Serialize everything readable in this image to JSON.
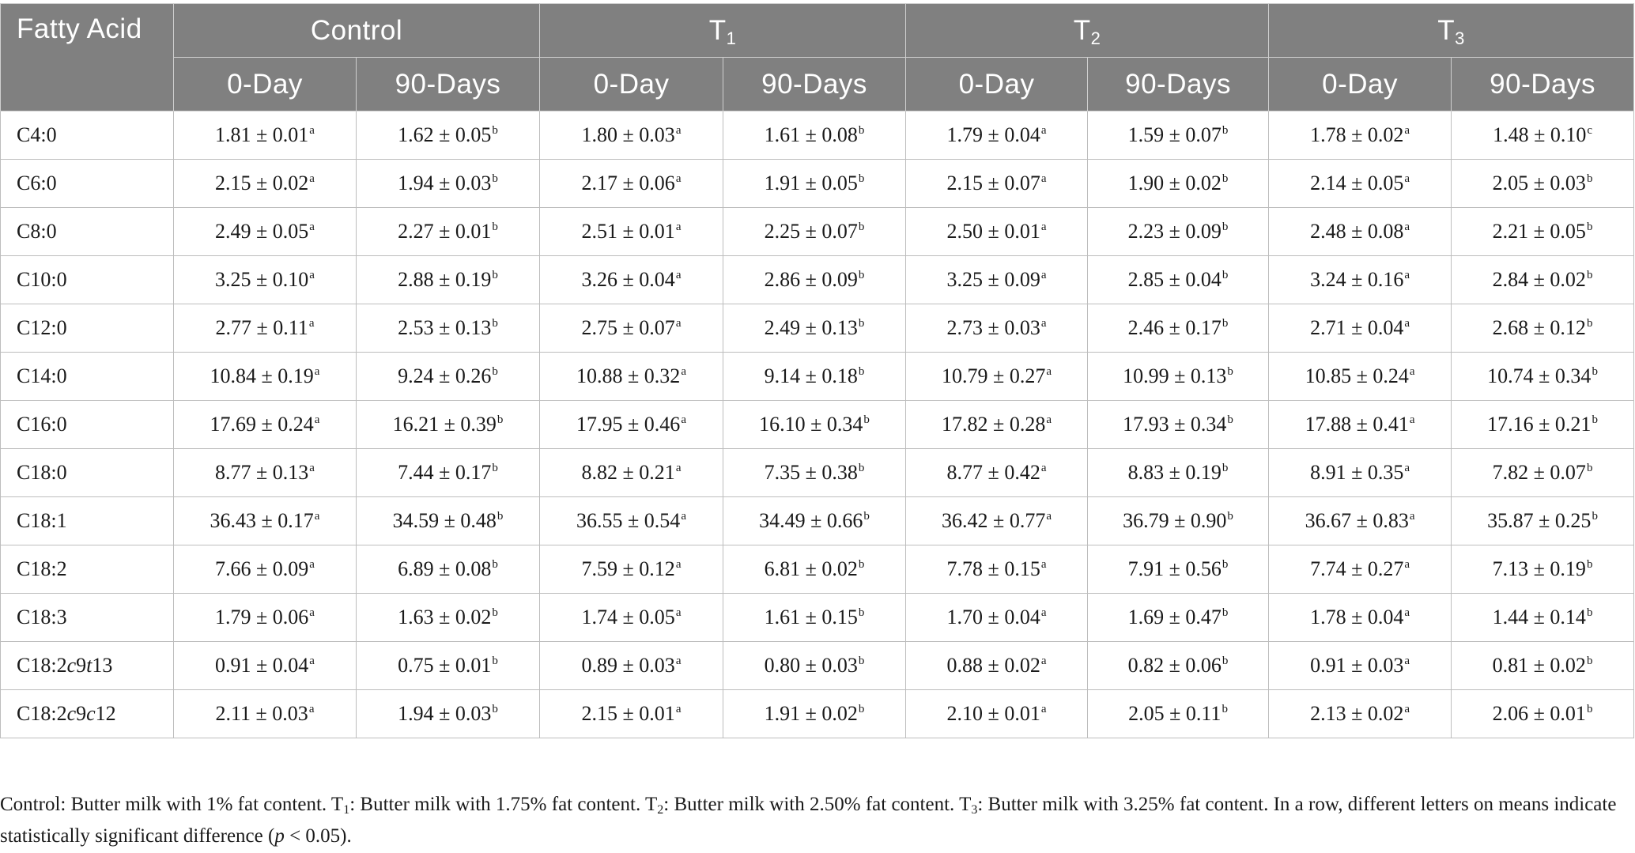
{
  "table": {
    "first_col_header": "Fatty Acid",
    "groups": [
      {
        "label": "Control",
        "sub": ""
      },
      {
        "label": "T",
        "sub": "1"
      },
      {
        "label": "T",
        "sub": "2"
      },
      {
        "label": "T",
        "sub": "3"
      }
    ],
    "subheaders": [
      "0-Day",
      "90-Days"
    ],
    "rows": [
      {
        "name": "C4:0",
        "cells": [
          [
            "1.81 ± 0.01",
            "a"
          ],
          [
            "1.62 ± 0.05",
            "b"
          ],
          [
            "1.80 ± 0.03",
            "a"
          ],
          [
            "1.61 ± 0.08",
            "b"
          ],
          [
            "1.79 ± 0.04",
            "a"
          ],
          [
            "1.59 ± 0.07",
            "b"
          ],
          [
            "1.78 ± 0.02",
            "a"
          ],
          [
            "1.48 ± 0.10",
            "c"
          ]
        ]
      },
      {
        "name": "C6:0",
        "cells": [
          [
            "2.15 ± 0.02",
            "a"
          ],
          [
            "1.94 ± 0.03",
            "b"
          ],
          [
            "2.17 ± 0.06",
            "a"
          ],
          [
            "1.91 ± 0.05",
            "b"
          ],
          [
            "2.15 ± 0.07",
            "a"
          ],
          [
            "1.90 ± 0.02",
            "b"
          ],
          [
            "2.14 ± 0.05",
            "a"
          ],
          [
            "2.05 ± 0.03",
            "b"
          ]
        ]
      },
      {
        "name": "C8:0",
        "cells": [
          [
            "2.49 ± 0.05",
            "a"
          ],
          [
            "2.27 ± 0.01",
            "b"
          ],
          [
            "2.51 ± 0.01",
            "a"
          ],
          [
            "2.25 ± 0.07",
            "b"
          ],
          [
            "2.50 ± 0.01",
            "a"
          ],
          [
            "2.23 ± 0.09",
            "b"
          ],
          [
            "2.48 ± 0.08",
            "a"
          ],
          [
            "2.21 ± 0.05",
            "b"
          ]
        ]
      },
      {
        "name": "C10:0",
        "cells": [
          [
            "3.25 ± 0.10",
            "a"
          ],
          [
            "2.88 ± 0.19",
            "b"
          ],
          [
            "3.26 ± 0.04",
            "a"
          ],
          [
            "2.86 ± 0.09",
            "b"
          ],
          [
            "3.25 ± 0.09",
            "a"
          ],
          [
            "2.85 ± 0.04",
            "b"
          ],
          [
            "3.24 ± 0.16",
            "a"
          ],
          [
            "2.84 ± 0.02",
            "b"
          ]
        ]
      },
      {
        "name": "C12:0",
        "cells": [
          [
            "2.77 ± 0.11",
            "a"
          ],
          [
            "2.53 ± 0.13",
            "b"
          ],
          [
            "2.75 ± 0.07",
            "a"
          ],
          [
            "2.49 ± 0.13",
            "b"
          ],
          [
            "2.73 ± 0.03",
            "a"
          ],
          [
            "2.46 ± 0.17",
            "b"
          ],
          [
            "2.71 ± 0.04",
            "a"
          ],
          [
            "2.68 ± 0.12",
            "b"
          ]
        ]
      },
      {
        "name": "C14:0",
        "cells": [
          [
            "10.84 ± 0.19",
            "a"
          ],
          [
            "9.24 ± 0.26",
            "b"
          ],
          [
            "10.88 ± 0.32",
            "a"
          ],
          [
            "9.14 ± 0.18",
            "b"
          ],
          [
            "10.79 ± 0.27",
            "a"
          ],
          [
            "10.99 ± 0.13",
            "b"
          ],
          [
            "10.85 ± 0.24",
            "a"
          ],
          [
            "10.74 ± 0.34",
            "b"
          ]
        ]
      },
      {
        "name": "C16:0",
        "cells": [
          [
            "17.69 ± 0.24",
            "a"
          ],
          [
            "16.21 ± 0.39",
            "b"
          ],
          [
            "17.95 ± 0.46",
            "a"
          ],
          [
            "16.10 ± 0.34",
            "b"
          ],
          [
            "17.82 ± 0.28",
            "a"
          ],
          [
            "17.93 ± 0.34",
            "b"
          ],
          [
            "17.88 ± 0.41",
            "a"
          ],
          [
            "17.16 ± 0.21",
            "b"
          ]
        ]
      },
      {
        "name": "C18:0",
        "cells": [
          [
            "8.77 ± 0.13",
            "a"
          ],
          [
            "7.44 ± 0.17",
            "b"
          ],
          [
            "8.82 ± 0.21",
            "a"
          ],
          [
            "7.35 ± 0.38",
            "b"
          ],
          [
            "8.77 ± 0.42",
            "a"
          ],
          [
            "8.83 ± 0.19",
            "b"
          ],
          [
            "8.91 ± 0.35",
            "a"
          ],
          [
            "7.82 ± 0.07",
            "b"
          ]
        ]
      },
      {
        "name": "C18:1",
        "cells": [
          [
            "36.43 ± 0.17",
            "a"
          ],
          [
            "34.59 ± 0.48",
            "b"
          ],
          [
            "36.55 ± 0.54",
            "a"
          ],
          [
            "34.49 ± 0.66",
            "b"
          ],
          [
            "36.42 ± 0.77",
            "a"
          ],
          [
            "36.79 ± 0.90",
            "b"
          ],
          [
            "36.67 ± 0.83",
            "a"
          ],
          [
            "35.87 ± 0.25",
            "b"
          ]
        ]
      },
      {
        "name": "C18:2",
        "cells": [
          [
            "7.66 ± 0.09",
            "a"
          ],
          [
            "6.89 ± 0.08",
            "b"
          ],
          [
            "7.59 ± 0.12",
            "a"
          ],
          [
            "6.81 ± 0.02",
            "b"
          ],
          [
            "7.78 ± 0.15",
            "a"
          ],
          [
            "7.91 ± 0.56",
            "b"
          ],
          [
            "7.74 ± 0.27",
            "a"
          ],
          [
            "7.13 ± 0.19",
            "b"
          ]
        ]
      },
      {
        "name": "C18:3",
        "cells": [
          [
            "1.79 ± 0.06",
            "a"
          ],
          [
            "1.63 ± 0.02",
            "b"
          ],
          [
            "1.74 ± 0.05",
            "a"
          ],
          [
            "1.61 ± 0.15",
            "b"
          ],
          [
            "1.70 ± 0.04",
            "a"
          ],
          [
            "1.69 ± 0.47",
            "b"
          ],
          [
            "1.78 ± 0.04",
            "a"
          ],
          [
            "1.44 ± 0.14",
            "b"
          ]
        ]
      },
      {
        "name": "C18:2c9t13",
        "cells": [
          [
            "0.91 ± 0.04",
            "a"
          ],
          [
            "0.75 ± 0.01",
            "b"
          ],
          [
            "0.89 ± 0.03",
            "a"
          ],
          [
            "0.80 ± 0.03",
            "b"
          ],
          [
            "0.88 ± 0.02",
            "a"
          ],
          [
            "0.82 ± 0.06",
            "b"
          ],
          [
            "0.91 ± 0.03",
            "a"
          ],
          [
            "0.81 ± 0.02",
            "b"
          ]
        ]
      },
      {
        "name": "C18:2c9c12",
        "cells": [
          [
            "2.11 ± 0.03",
            "a"
          ],
          [
            "1.94 ± 0.03",
            "b"
          ],
          [
            "2.15 ± 0.01",
            "a"
          ],
          [
            "1.91 ± 0.02",
            "b"
          ],
          [
            "2.10 ± 0.01",
            "a"
          ],
          [
            "2.05 ± 0.11",
            "b"
          ],
          [
            "2.13 ± 0.02",
            "a"
          ],
          [
            "2.06 ± 0.01",
            "b"
          ]
        ]
      }
    ]
  },
  "footnote": {
    "p1": "Control: Butter milk with 1% fat content. T",
    "s1": "1",
    "p2": ": Butter milk with 1.75% fat content. T",
    "s2": "2",
    "p3": ": Butter milk with 2.50% fat content. T",
    "s3": "3",
    "p4": ": Butter milk with 3.25% fat content. In a row, different letters on means indicate statistically significant difference (p < 0.05)."
  }
}
